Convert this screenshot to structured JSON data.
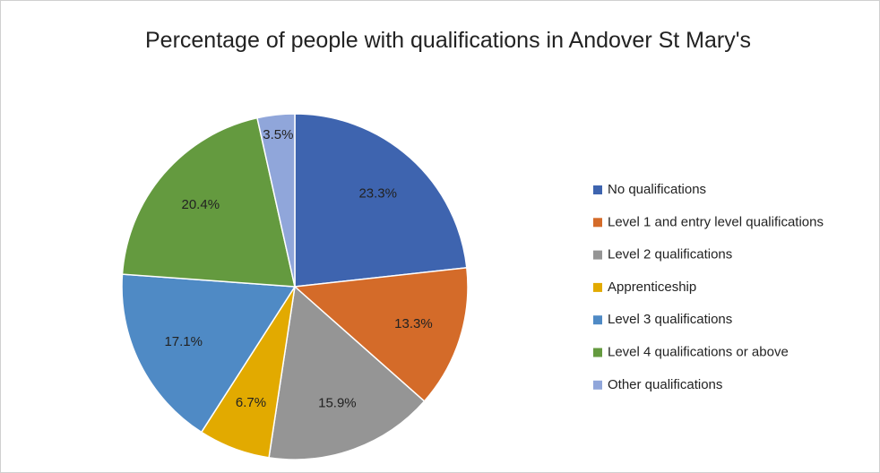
{
  "chart_data": {
    "type": "pie",
    "title": "Percentage of people with qualifications in Andover St Mary's",
    "categories": [
      "No qualifications",
      "Level 1 and entry level qualifications",
      "Level 2 qualifications",
      "Apprenticeship",
      "Level 3 qualifications",
      "Level 4 qualifications or above",
      "Other qualifications"
    ],
    "values": [
      23.3,
      13.3,
      15.9,
      6.7,
      17.1,
      20.4,
      3.5
    ],
    "value_labels": [
      "23.3%",
      "13.3%",
      "15.9%",
      "6.7%",
      "17.1%",
      "20.4%",
      "3.5%"
    ],
    "colors": [
      "#3e64af",
      "#d46b29",
      "#959595",
      "#e2aa00",
      "#4f8ac5",
      "#649a3f",
      "#90a6da"
    ],
    "legend": "right"
  }
}
